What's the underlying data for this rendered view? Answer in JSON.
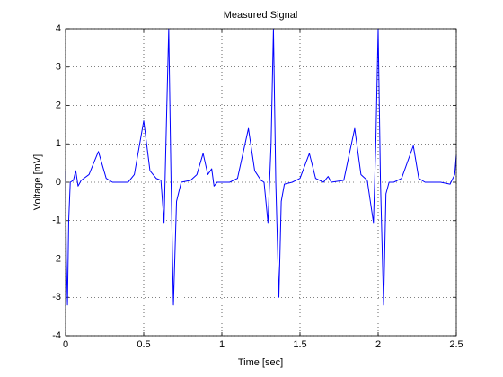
{
  "chart_data": {
    "type": "line",
    "title": "Measured Signal",
    "x_label": "Time [sec]",
    "y_label": "Voltage [mV]",
    "color": "#0000ff",
    "grid": true,
    "xlim": [
      0,
      2.5
    ],
    "xticks": [
      0,
      0.5,
      1,
      1.5,
      2,
      2.5
    ],
    "ylim": [
      -4,
      4
    ],
    "yticks": [
      -4,
      -3,
      -2,
      -1,
      0,
      1,
      2,
      3,
      4
    ],
    "x": [
      0,
      0.005,
      0.012,
      0.02,
      0.03,
      0.05,
      0.065,
      0.08,
      0.1,
      0.15,
      0.21,
      0.26,
      0.3,
      0.35,
      0.4,
      0.44,
      0.5,
      0.54,
      0.58,
      0.61,
      0.63,
      0.645,
      0.66,
      0.675,
      0.69,
      0.71,
      0.74,
      0.8,
      0.84,
      0.88,
      0.91,
      0.935,
      0.95,
      0.97,
      1.05,
      1.1,
      1.17,
      1.21,
      1.25,
      1.27,
      1.295,
      1.315,
      1.33,
      1.345,
      1.365,
      1.38,
      1.4,
      1.45,
      1.5,
      1.56,
      1.6,
      1.65,
      1.68,
      1.7,
      1.78,
      1.85,
      1.89,
      1.93,
      1.97,
      1.985,
      2.0,
      2.015,
      2.035,
      2.05,
      2.07,
      2.1,
      2.15,
      2.225,
      2.26,
      2.3,
      2.4,
      2.46,
      2.49,
      2.5
    ],
    "values": [
      0.3,
      -2,
      -3.2,
      -1,
      0,
      0.05,
      0.3,
      -0.1,
      0.05,
      0.2,
      0.8,
      0.1,
      0,
      0,
      0,
      0.2,
      1.6,
      0.3,
      0.1,
      0.05,
      -1.05,
      1.5,
      4,
      0,
      -3.2,
      -0.5,
      0,
      0.05,
      0.2,
      0.75,
      0.2,
      0.35,
      -0.1,
      0,
      0,
      0.1,
      1.4,
      0.3,
      0.05,
      0,
      -1.05,
      1,
      4,
      0,
      -3,
      -0.5,
      -0.05,
      0,
      0.1,
      0.75,
      0.1,
      0,
      0.15,
      0,
      0.05,
      1.4,
      0.2,
      0.05,
      -1.05,
      1,
      4,
      0,
      -3.2,
      -0.3,
      0,
      0,
      0.1,
      0.95,
      0.1,
      0,
      0,
      -0.05,
      0.2,
      0.7
    ]
  }
}
